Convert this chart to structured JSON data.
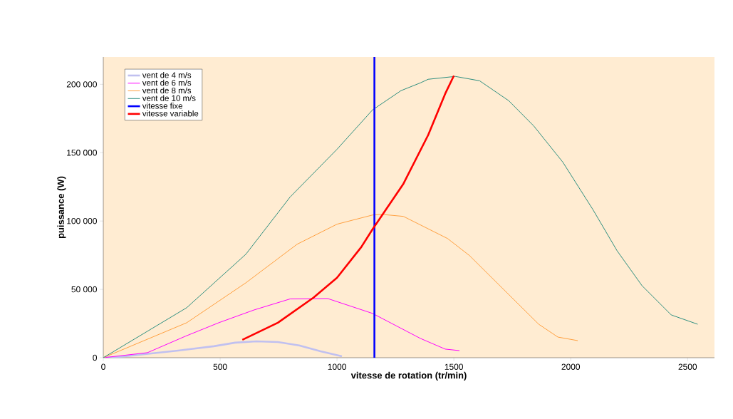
{
  "chart_data": {
    "type": "line",
    "xlabel": "vitesse de rotation (tr/min)",
    "ylabel": "puissance (W)",
    "xlim": [
      0,
      2615
    ],
    "ylim": [
      0,
      220000
    ],
    "xticks": [
      0,
      500,
      1000,
      1500,
      2000,
      2500
    ],
    "yticks": [
      0,
      {
        "value": 50000,
        "label": "50 000"
      },
      {
        "value": 100000,
        "label": "100 000"
      },
      {
        "value": 150000,
        "label": "150 000"
      },
      {
        "value": 200000,
        "label": "200 000"
      }
    ],
    "grid": false,
    "legend": "top left",
    "marker": "none",
    "line_style": "solid",
    "series": [
      {
        "name": "vent de 4 m/s",
        "color": "#c0c0f0",
        "x": [
          0,
          61,
          320,
          473,
          564,
          655,
          747,
          838,
          930,
          1021
        ],
        "values": [
          0,
          500,
          5200,
          8400,
          11000,
          12000,
          11500,
          9000,
          4700,
          1000
        ]
      },
      {
        "name": "vent de 6 m/s",
        "color": "#ff00ff",
        "x": [
          0,
          189,
          351,
          494,
          646,
          799,
          960,
          1152,
          1357,
          1463,
          1524
        ],
        "values": [
          0,
          3700,
          15700,
          25600,
          35000,
          43000,
          43300,
          32400,
          14100,
          6300,
          5200
        ]
      },
      {
        "name": "vent de 8 m/s",
        "color": "#ffa040",
        "x": [
          0,
          357,
          610,
          829,
          1000,
          1152,
          1189,
          1284,
          1473,
          1567,
          1863,
          1945,
          2030
        ],
        "values": [
          0,
          25600,
          54800,
          83000,
          97700,
          104400,
          104900,
          103400,
          87200,
          74700,
          24500,
          15100,
          12500
        ]
      },
      {
        "name": "vent de 10 m/s",
        "color": "#2f8f80",
        "x": [
          0,
          357,
          610,
          799,
          1000,
          1152,
          1274,
          1357,
          1390,
          1506,
          1610,
          1735,
          1841,
          1966,
          2094,
          2198,
          2305,
          2430,
          2543
        ],
        "values": [
          0,
          36600,
          75700,
          117500,
          152500,
          181300,
          195400,
          201100,
          203700,
          205800,
          202600,
          188000,
          169700,
          143100,
          108600,
          78300,
          52700,
          31300,
          24500
        ]
      },
      {
        "name": "vitesse fixe",
        "color": "#0000ff",
        "x": [
          1160,
          1160
        ],
        "values": [
          0,
          220000
        ]
      },
      {
        "name": "vitesse variable",
        "color": "#ff0000",
        "x": [
          595,
          747,
          899,
          1000,
          1104,
          1152,
          1283,
          1390,
          1463,
          1500
        ],
        "values": [
          13100,
          25600,
          43900,
          58500,
          81000,
          94000,
          126900,
          162900,
          193200,
          206300
        ]
      }
    ]
  }
}
